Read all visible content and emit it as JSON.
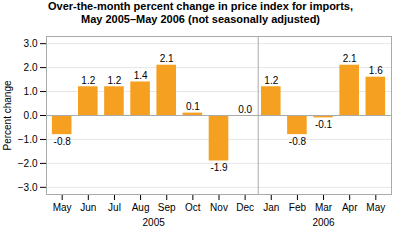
{
  "chart_data": {
    "type": "bar",
    "title": "Over-the-month percent change in price index for imports,",
    "subtitle": "May 2005–May 2006 (not seasonally adjusted)",
    "y_label": "Percent change",
    "categories": [
      "May",
      "Jun",
      "Jul",
      "Aug",
      "Sep",
      "Oct",
      "Nov",
      "Dec",
      "Jan",
      "Feb",
      "Mar",
      "Apr",
      "May"
    ],
    "values": [
      -0.8,
      1.2,
      1.2,
      1.4,
      2.1,
      0.1,
      -1.9,
      0.0,
      1.2,
      -0.8,
      -0.1,
      2.1,
      1.6
    ],
    "value_labels": [
      "-0.8",
      "1.2",
      "1.2",
      "1.4",
      "2.1",
      "0.1",
      "-1.9",
      "0.0",
      "1.2",
      "-0.8",
      "-0.1",
      "2.1",
      "1.6"
    ],
    "groups": [
      {
        "label": "2005",
        "size": 8
      },
      {
        "label": "2006",
        "size": 5
      }
    ],
    "color": "#F5A020",
    "ylim": [
      -3.3,
      3.3
    ],
    "yticks": [
      -3,
      -2,
      -1,
      0,
      1,
      2,
      3
    ],
    "grid": true,
    "data_labels": true
  }
}
